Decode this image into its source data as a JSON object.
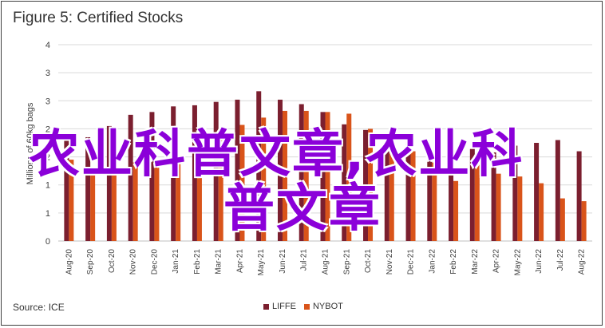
{
  "chart_data": {
    "type": "bar",
    "title": "Figure 5: Certified Stocks",
    "ylabel": "Millions of 60kg bags",
    "xlabel": "",
    "ylim": [
      0,
      3.5
    ],
    "yticks": [
      "0",
      "1",
      "1",
      "2",
      "2",
      "3",
      "3",
      "4"
    ],
    "ytick_values": [
      0,
      0.5,
      1,
      1.5,
      2,
      2.5,
      3,
      3.5
    ],
    "grid": "horizontal",
    "legend_position": "bottom",
    "categories": [
      "Aug-20",
      "Sep-20",
      "Oct-20",
      "Nov-20",
      "Dec-20",
      "Jan-21",
      "Feb-21",
      "Mar-21",
      "Apr-21",
      "May-21",
      "Jun-21",
      "Jul-21",
      "Aug-21",
      "Sep-21",
      "Oct-21",
      "Nov-21",
      "Dec-21",
      "Jan-22",
      "Feb-22",
      "Mar-22",
      "Apr-22",
      "May-22",
      "Jun-22",
      "Jul-22",
      "Aug-22"
    ],
    "series": [
      {
        "name": "LIFFE",
        "color": "#7b1f2f",
        "values": [
          1.85,
          1.85,
          2.05,
          2.25,
          2.3,
          2.4,
          2.42,
          2.48,
          2.52,
          2.67,
          2.52,
          2.44,
          2.3,
          2.08,
          1.98,
          1.85,
          1.82,
          1.58,
          1.55,
          1.64,
          1.58,
          1.7,
          1.75,
          1.8,
          1.6
        ]
      },
      {
        "name": "NYBOT",
        "color": "#d9541a",
        "values": [
          1.45,
          1.25,
          1.38,
          1.4,
          1.38,
          1.4,
          1.9,
          1.97,
          2.07,
          2.2,
          2.32,
          2.32,
          2.3,
          2.27,
          2.0,
          1.7,
          1.6,
          1.4,
          1.07,
          1.42,
          1.2,
          1.15,
          1.03,
          0.76,
          0.71
        ]
      }
    ]
  },
  "source": "Source: ICE",
  "watermark": {
    "line1": "农业科普文章,农业科",
    "line2": "普文章"
  }
}
